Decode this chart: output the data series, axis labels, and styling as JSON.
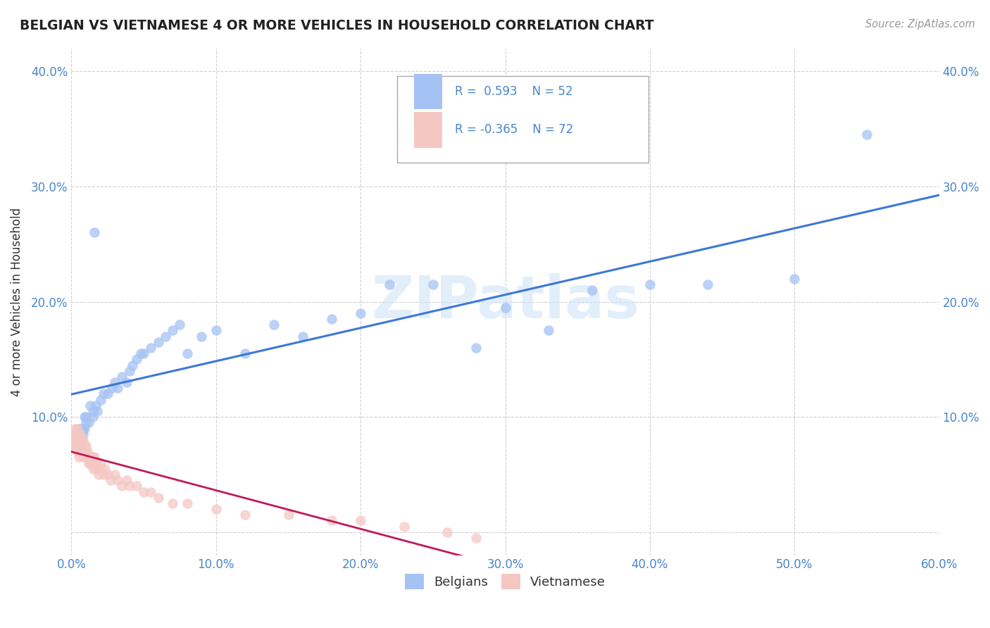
{
  "title": "BELGIAN VS VIETNAMESE 4 OR MORE VEHICLES IN HOUSEHOLD CORRELATION CHART",
  "source": "Source: ZipAtlas.com",
  "ylabel": "4 or more Vehicles in Household",
  "xlim": [
    0.0,
    0.6
  ],
  "ylim": [
    -0.02,
    0.42
  ],
  "xticks": [
    0.0,
    0.1,
    0.2,
    0.3,
    0.4,
    0.5,
    0.6
  ],
  "xtick_labels": [
    "0.0%",
    "10.0%",
    "20.0%",
    "30.0%",
    "40.0%",
    "50.0%",
    "60.0%"
  ],
  "yticks": [
    0.0,
    0.1,
    0.2,
    0.3,
    0.4
  ],
  "ytick_labels": [
    "",
    "10.0%",
    "20.0%",
    "30.0%",
    "40.0%"
  ],
  "belgian_R": 0.593,
  "belgian_N": 52,
  "vietnamese_R": -0.365,
  "vietnamese_N": 72,
  "blue_color": "#a4c2f4",
  "pink_color": "#f4c7c3",
  "blue_line_color": "#3c78d8",
  "pink_line_color": "#c2185b",
  "belgian_x": [
    0.005,
    0.006,
    0.007,
    0.008,
    0.008,
    0.009,
    0.009,
    0.01,
    0.01,
    0.012,
    0.013,
    0.015,
    0.015,
    0.016,
    0.017,
    0.018,
    0.02,
    0.022,
    0.025,
    0.028,
    0.03,
    0.032,
    0.035,
    0.038,
    0.04,
    0.042,
    0.045,
    0.048,
    0.05,
    0.055,
    0.06,
    0.065,
    0.07,
    0.075,
    0.08,
    0.09,
    0.1,
    0.12,
    0.14,
    0.16,
    0.18,
    0.2,
    0.22,
    0.25,
    0.28,
    0.3,
    0.33,
    0.36,
    0.4,
    0.44,
    0.5,
    0.55
  ],
  "belgian_y": [
    0.09,
    0.085,
    0.09,
    0.085,
    0.09,
    0.1,
    0.09,
    0.1,
    0.095,
    0.095,
    0.11,
    0.1,
    0.105,
    0.26,
    0.11,
    0.105,
    0.115,
    0.12,
    0.12,
    0.125,
    0.13,
    0.125,
    0.135,
    0.13,
    0.14,
    0.145,
    0.15,
    0.155,
    0.155,
    0.16,
    0.165,
    0.17,
    0.175,
    0.18,
    0.155,
    0.17,
    0.175,
    0.155,
    0.18,
    0.17,
    0.185,
    0.19,
    0.215,
    0.215,
    0.16,
    0.195,
    0.175,
    0.21,
    0.215,
    0.215,
    0.22,
    0.345
  ],
  "vietnamese_x": [
    0.001,
    0.001,
    0.002,
    0.002,
    0.002,
    0.003,
    0.003,
    0.003,
    0.003,
    0.004,
    0.004,
    0.004,
    0.004,
    0.005,
    0.005,
    0.005,
    0.005,
    0.006,
    0.006,
    0.006,
    0.007,
    0.007,
    0.007,
    0.008,
    0.008,
    0.008,
    0.009,
    0.009,
    0.01,
    0.01,
    0.01,
    0.011,
    0.011,
    0.012,
    0.012,
    0.013,
    0.013,
    0.014,
    0.014,
    0.015,
    0.015,
    0.016,
    0.016,
    0.017,
    0.017,
    0.018,
    0.019,
    0.02,
    0.02,
    0.022,
    0.023,
    0.025,
    0.027,
    0.03,
    0.032,
    0.035,
    0.038,
    0.04,
    0.045,
    0.05,
    0.055,
    0.06,
    0.07,
    0.08,
    0.1,
    0.12,
    0.15,
    0.18,
    0.2,
    0.23,
    0.26,
    0.28
  ],
  "vietnamese_y": [
    0.075,
    0.085,
    0.08,
    0.09,
    0.075,
    0.08,
    0.085,
    0.075,
    0.08,
    0.075,
    0.085,
    0.07,
    0.09,
    0.075,
    0.065,
    0.08,
    0.085,
    0.08,
    0.075,
    0.085,
    0.07,
    0.08,
    0.075,
    0.07,
    0.08,
    0.065,
    0.075,
    0.07,
    0.075,
    0.065,
    0.07,
    0.065,
    0.07,
    0.065,
    0.06,
    0.065,
    0.06,
    0.065,
    0.06,
    0.065,
    0.055,
    0.06,
    0.065,
    0.055,
    0.06,
    0.055,
    0.05,
    0.06,
    0.055,
    0.05,
    0.055,
    0.05,
    0.045,
    0.05,
    0.045,
    0.04,
    0.045,
    0.04,
    0.04,
    0.035,
    0.035,
    0.03,
    0.025,
    0.025,
    0.02,
    0.015,
    0.015,
    0.01,
    0.01,
    0.005,
    0.0,
    -0.005
  ],
  "watermark": "ZIPatlas",
  "watermark_color": "#d0e4f7"
}
